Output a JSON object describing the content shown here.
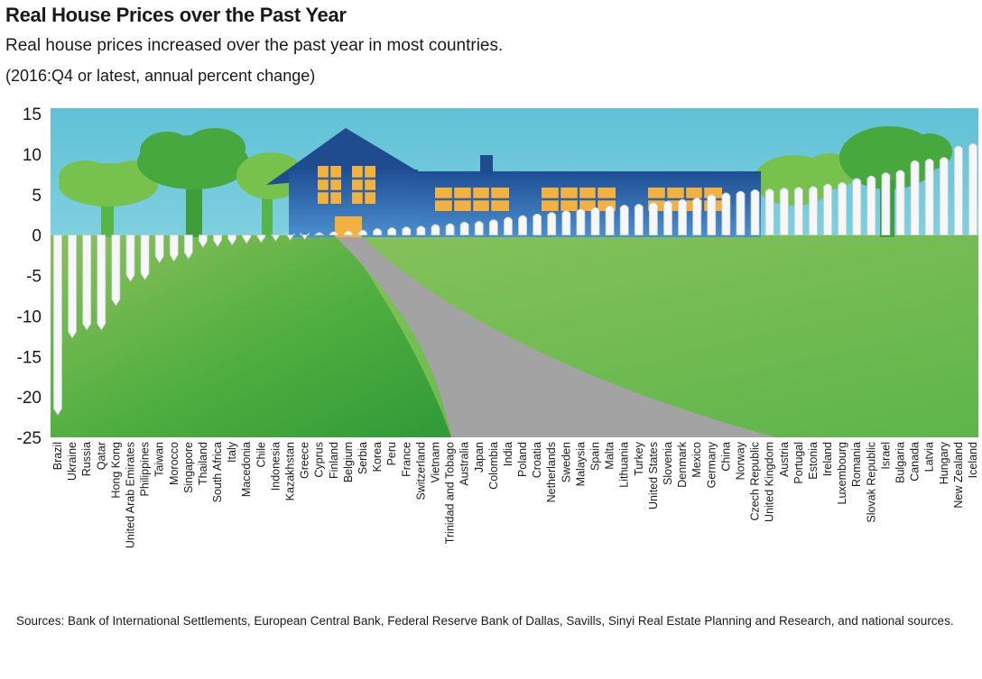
{
  "chart_data": {
    "type": "bar",
    "title": "Real House Prices over the Past Year",
    "subtitle": "Real house prices increased over the past year in most countries.",
    "units_note": "(2016:Q4 or latest, annual percent change)",
    "ylim": [
      -25,
      15
    ],
    "yticks": [
      15,
      10,
      5,
      0,
      -5,
      -10,
      -15,
      -20,
      -25
    ],
    "categories": [
      "Brazil",
      "Ukraine",
      "Russia",
      "Qatar",
      "Hong Kong",
      "United Arab Emirates",
      "Philippines",
      "Taiwan",
      "Morocco",
      "Singapore",
      "Thailand",
      "South Africa",
      "Italy",
      "Macedonia",
      "Chile",
      "Indonesia",
      "Kazakhstan",
      "Greece",
      "Cyprus",
      "Finland",
      "Belgium",
      "Serbia",
      "Korea",
      "Peru",
      "France",
      "Switzerland",
      "Vietnam",
      "Trinidad and Tobago",
      "Australia",
      "Japan",
      "Colombia",
      "India",
      "Poland",
      "Croatia",
      "Netherlands",
      "Sweden",
      "Malaysia",
      "Spain",
      "Malta",
      "Lithuania",
      "Turkey",
      "United States",
      "Slovenia",
      "Denmark",
      "Mexico",
      "Germany",
      "China",
      "Norway",
      "Czech Republic",
      "United Kingdom",
      "Austria",
      "Portugal",
      "Estonia",
      "Ireland",
      "Luxembourg",
      "Romania",
      "Slovak Republic",
      "Israel",
      "Bulgaria",
      "Canada",
      "Latvia",
      "Hungary",
      "New Zealand",
      "Iceland"
    ],
    "values": [
      -22.0,
      -12.5,
      -11.5,
      -11.5,
      -8.5,
      -5.5,
      -5.3,
      -3.2,
      -3.0,
      -2.7,
      -1.3,
      -1.2,
      -1.0,
      -0.8,
      -0.7,
      -0.5,
      -0.4,
      -0.3,
      0.3,
      0.4,
      0.5,
      0.6,
      0.8,
      0.9,
      1.0,
      1.1,
      1.3,
      1.4,
      1.6,
      1.7,
      1.9,
      2.2,
      2.4,
      2.6,
      2.8,
      3.0,
      3.2,
      3.4,
      3.6,
      3.7,
      3.8,
      4.0,
      4.2,
      4.4,
      4.6,
      5.0,
      5.2,
      5.4,
      5.6,
      5.7,
      5.8,
      5.9,
      6.0,
      6.3,
      6.5,
      7.0,
      7.3,
      7.7,
      8.0,
      9.2,
      9.4,
      9.6,
      11.0,
      11.3
    ],
    "sources": "Sources: Bank of International Settlements, European Central Bank, Federal Reserve Bank of Dallas, Savills, Sinyi Real Estate Planning and Research, and national sources.",
    "colors": {
      "sky": "#63c4d8",
      "grass_dark": "#3da33b",
      "grass_light": "#8cc15c",
      "tree": "#6cbf4a",
      "tree_dark": "#3d9e3a",
      "house": "#2f63a8",
      "house_roof": "#1f4c8f",
      "window": "#f3b13f",
      "path": "#a0a0a0",
      "fence": "#f6f7f9",
      "fence_edge": "#c9ced4"
    }
  }
}
